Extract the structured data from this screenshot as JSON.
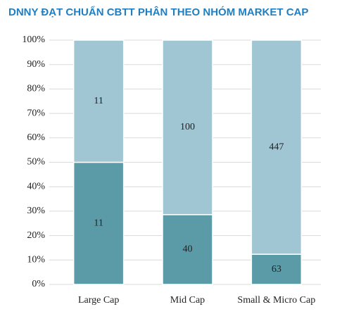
{
  "chart_data": {
    "type": "stacked_percent_bar",
    "title": "DNNY ĐẠT CHUẨN CBTT PHÂN THEO NHÓM MARKET CAP",
    "categories": [
      "Large Cap",
      "Mid Cap",
      "Small & Micro Cap"
    ],
    "series": [
      {
        "color": "#5b9ba8",
        "values": [
          11,
          40,
          63
        ]
      },
      {
        "color": "#a0c6d3",
        "values": [
          11,
          100,
          447
        ]
      }
    ],
    "ylim": [
      0,
      100
    ],
    "yticks": [
      {
        "value": 0,
        "label": "0%"
      },
      {
        "value": 10,
        "label": "10%"
      },
      {
        "value": 20,
        "label": "20%"
      },
      {
        "value": 30,
        "label": "30%"
      },
      {
        "value": 40,
        "label": "40%"
      },
      {
        "value": 50,
        "label": "50%"
      },
      {
        "value": 60,
        "label": "60%"
      },
      {
        "value": 70,
        "label": "70%"
      },
      {
        "value": 80,
        "label": "80%"
      },
      {
        "value": 90,
        "label": "90%"
      },
      {
        "value": 100,
        "label": "100%"
      }
    ],
    "grid": true
  }
}
